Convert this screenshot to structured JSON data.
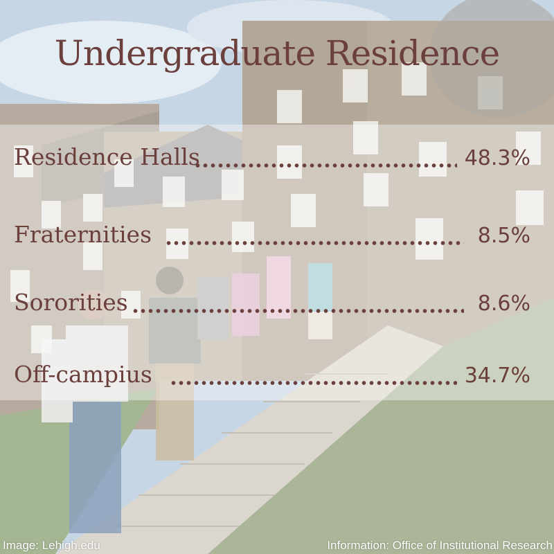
{
  "title": "Undergraduate Residence",
  "rows": [
    {
      "label": "Residence Halls",
      "value": "48.3%"
    },
    {
      "label": "Fraternities",
      "value": "8.5%"
    },
    {
      "label": "Sororities",
      "value": "8.6%"
    },
    {
      "label": "Off-campius",
      "value": "34.7%"
    }
  ],
  "footer": {
    "image_credit": "Image: Lehigh.edu",
    "info_credit": "Information: Office of Institutional Research"
  },
  "colors": {
    "text": "#6b3f3b",
    "overlay": "#ffffff",
    "sky": "#9fb8cf",
    "stone": "#8a7a66",
    "grass": "#7f9a5a"
  }
}
